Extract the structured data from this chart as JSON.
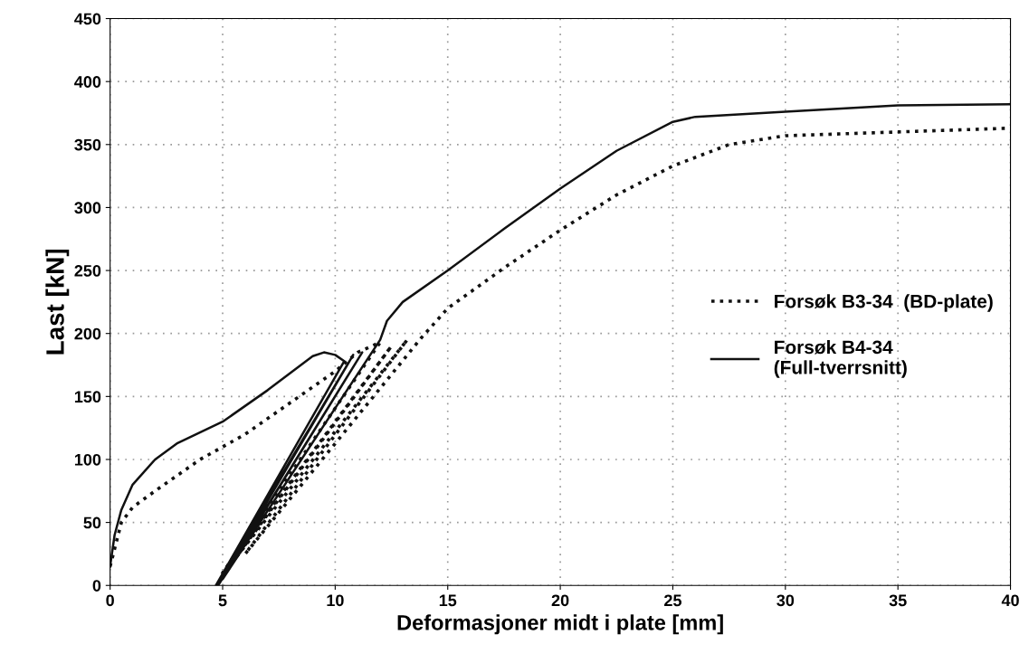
{
  "chart_data": {
    "type": "line",
    "xlabel": "Deformasjoner midt i plate [mm]",
    "ylabel": "Last [kN]",
    "xlim": [
      0,
      40
    ],
    "xticks": [
      0,
      5,
      10,
      15,
      20,
      25,
      30,
      35,
      40
    ],
    "ylim": [
      0,
      450
    ],
    "yticks": [
      0,
      50,
      100,
      150,
      200,
      250,
      300,
      350,
      400,
      450
    ],
    "grid": true,
    "legend": "right",
    "series": [
      {
        "name": "Forsøk B3-34  (BD-plate)",
        "color": "#111111",
        "line_style": "dotted",
        "x": [
          0,
          0.5,
          1,
          2,
          4,
          6,
          8,
          10,
          11,
          12,
          5,
          12.5,
          5.5,
          13.2,
          6,
          13.8,
          15,
          17.5,
          20,
          22.5,
          25,
          27.5,
          30,
          35,
          40
        ],
        "values": [
          15,
          50,
          62,
          75,
          100,
          120,
          145,
          170,
          185,
          193,
          10,
          190,
          20,
          195,
          25,
          196,
          220,
          252,
          282,
          310,
          333,
          350,
          357,
          360,
          363
        ]
      },
      {
        "name": "Forsøk B4-34\n(Full-tverrsnitt)",
        "color": "#111111",
        "line_style": "solid",
        "x": [
          0,
          0.2,
          0.5,
          1,
          2,
          3,
          5,
          7,
          9,
          9.5,
          10,
          10.4,
          4.7,
          10.8,
          4.8,
          11.2,
          5,
          12,
          12.3,
          13,
          15,
          17.5,
          20,
          22.5,
          25,
          26,
          30,
          35,
          40
        ],
        "values": [
          15,
          40,
          60,
          80,
          100,
          113,
          130,
          155,
          182,
          185,
          183,
          178,
          0,
          183,
          0,
          185,
          5,
          195,
          210,
          225,
          250,
          283,
          315,
          345,
          368,
          372,
          376,
          381,
          382
        ]
      }
    ]
  }
}
